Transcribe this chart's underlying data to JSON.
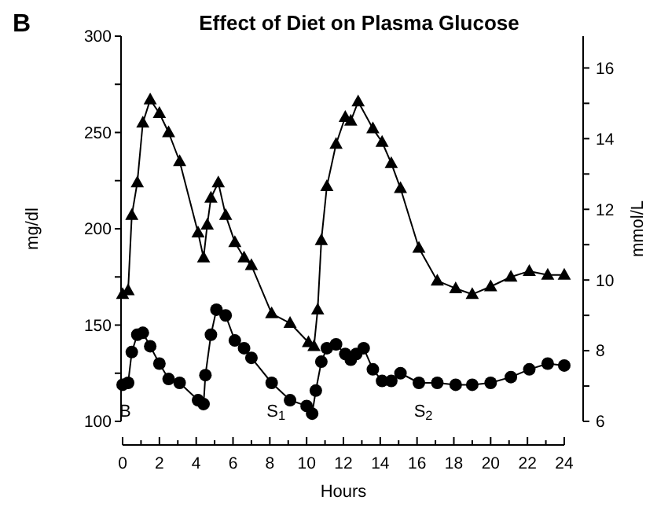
{
  "chart_data": {
    "type": "line",
    "title": "Effect of Diet on Plasma Glucose",
    "xlabel": "Hours",
    "ylabel": "mg/dl",
    "y2label": "mmol/L",
    "annotations": [
      "B",
      "B",
      "S$_{1}$",
      "S$_{2}$"
    ],
    "series": [
      {
        "color": "#000000",
        "marker": "triangle",
        "x": [
          0,
          0.3,
          0.5,
          0.8,
          1.1,
          1.5,
          2.0,
          2.5,
          3.1,
          4.1,
          4.4,
          4.6,
          4.8,
          5.2,
          5.6,
          6.1,
          6.6,
          7.0,
          8.1,
          9.1,
          10.1,
          10.4,
          10.6,
          10.8,
          11.1,
          11.6,
          12.1,
          12.4,
          12.8,
          13.6,
          14.1,
          14.6,
          15.1,
          16.1,
          17.1,
          18.1,
          19.0,
          20.0,
          21.1,
          22.1,
          23.1,
          24
        ],
        "values": [
          166,
          168,
          207,
          224,
          255,
          267,
          260,
          250,
          235,
          198,
          185,
          202,
          216,
          224,
          207,
          193,
          185,
          181,
          156,
          151,
          141,
          139,
          158,
          194,
          222,
          244,
          258,
          256,
          266,
          252,
          245,
          234,
          221,
          190,
          173,
          169,
          166,
          170,
          175,
          178,
          176,
          176
        ]
      },
      {
        "color": "#000000",
        "marker": "circle",
        "x": [
          0,
          0.3,
          0.5,
          0.8,
          1.1,
          1.5,
          2.0,
          2.5,
          3.1,
          4.1,
          4.4,
          4.5,
          4.8,
          5.1,
          5.6,
          6.1,
          6.6,
          7.0,
          8.1,
          9.1,
          10.0,
          10.3,
          10.5,
          10.8,
          11.1,
          11.6,
          12.1,
          12.4,
          12.7,
          13.1,
          13.6,
          14.1,
          14.6,
          15.1,
          16.1,
          17.1,
          18.1,
          19.0,
          20.0,
          21.1,
          22.1,
          23.1,
          24
        ],
        "values": [
          119,
          120,
          136,
          145,
          146,
          139,
          130,
          122,
          120,
          111,
          109,
          124,
          145,
          158,
          155,
          142,
          138,
          133,
          120,
          111,
          108,
          104,
          116,
          131,
          138,
          140,
          135,
          132,
          135,
          138,
          127,
          121,
          121,
          125,
          120,
          120,
          119,
          119,
          120,
          123,
          127,
          130,
          129
        ]
      }
    ],
    "xlim": [
      0,
      24
    ],
    "xticks": [
      0,
      {
        "value": 1,
        "label": null
      },
      2,
      {
        "value": 3,
        "label": null
      },
      4,
      {
        "value": 5,
        "label": null
      },
      6,
      {
        "value": 7,
        "label": null
      },
      8,
      {
        "value": 9,
        "label": null
      },
      10,
      {
        "value": 11,
        "label": null
      },
      12,
      {
        "value": 13,
        "label": null
      },
      14,
      {
        "value": 15,
        "label": null
      },
      16,
      {
        "value": 17,
        "label": null
      },
      18,
      {
        "value": 19,
        "label": null
      },
      20,
      {
        "value": 21,
        "label": null
      },
      22,
      {
        "value": 23,
        "label": null
      },
      24
    ],
    "ylim": [
      100,
      300
    ],
    "yticks": [
      100,
      {
        "value": 125,
        "label": null
      },
      150,
      {
        "value": 175,
        "label": null
      },
      200,
      {
        "value": 225,
        "label": null
      },
      250,
      {
        "value": 275,
        "label": null
      },
      300
    ],
    "y2lim": [
      6,
      16.9
    ],
    "y2ticks": [
      6,
      {
        "value": 7,
        "label": null
      },
      8,
      {
        "value": 9,
        "label": null
      },
      10,
      {
        "value": 11,
        "label": null
      },
      12,
      {
        "value": 13,
        "label": null
      },
      14,
      {
        "value": 15,
        "label": null
      },
      16
    ],
    "grid": false,
    "line_style": "solid"
  }
}
